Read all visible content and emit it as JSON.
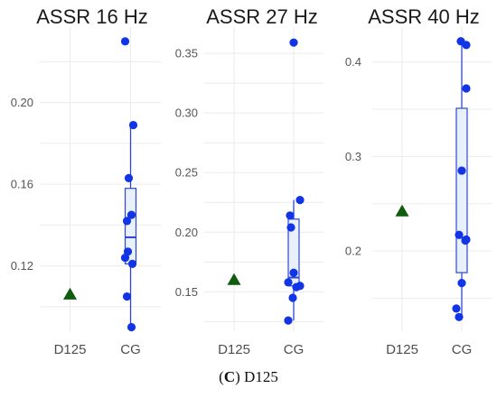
{
  "caption": {
    "letter": "C",
    "text": "D125"
  },
  "colors": {
    "cg_points": "#1034e6",
    "d125_marker": "#0f5c0f",
    "box_fill": "#e8f0fb",
    "box_line": "#2e46d6",
    "grid": "#ebebeb"
  },
  "chart_data": [
    {
      "type": "box",
      "title": "ASSR 16 Hz",
      "categories": [
        "D125",
        "CG"
      ],
      "ylim": [
        0.088,
        0.237
      ],
      "yticks": [
        0.12,
        0.16,
        0.2
      ],
      "ytick_labels": [
        "0.12",
        "0.16",
        "0.20"
      ],
      "grid": true,
      "d125": [
        0.106
      ],
      "cg_points": [
        0.23,
        0.189,
        0.163,
        0.145,
        0.142,
        0.127,
        0.124,
        0.121,
        0.105,
        0.09
      ],
      "cg_box": {
        "whisker_low": 0.09,
        "q1": 0.121,
        "median": 0.134,
        "q3": 0.158,
        "whisker_high": 0.189
      }
    },
    {
      "type": "box",
      "title": "ASSR 27 Hz",
      "categories": [
        "D125",
        "CG"
      ],
      "ylim": [
        0.117,
        0.372
      ],
      "yticks": [
        0.15,
        0.2,
        0.25,
        0.3,
        0.35
      ],
      "ytick_labels": [
        "0.15",
        "0.20",
        "0.25",
        "0.30",
        "0.35"
      ],
      "grid": true,
      "d125": [
        0.16
      ],
      "cg_points": [
        0.359,
        0.227,
        0.214,
        0.204,
        0.166,
        0.158,
        0.155,
        0.154,
        0.145,
        0.126
      ],
      "cg_box": {
        "whisker_low": 0.126,
        "q1": 0.155,
        "median": 0.162,
        "q3": 0.211,
        "whisker_high": 0.227
      }
    },
    {
      "type": "box",
      "title": "ASSR 40 Hz",
      "categories": [
        "D125",
        "CG"
      ],
      "ylim": [
        0.115,
        0.437
      ],
      "yticks": [
        0.2,
        0.3,
        0.4
      ],
      "ytick_labels": [
        "0.2",
        "0.3",
        "0.4"
      ],
      "grid": true,
      "d125": [
        0.242
      ],
      "cg_points": [
        0.422,
        0.418,
        0.372,
        0.285,
        0.217,
        0.212,
        0.211,
        0.166,
        0.139,
        0.13
      ],
      "cg_box": {
        "whisker_low": 0.13,
        "q1": 0.177,
        "median": 0.214,
        "q3": 0.351,
        "whisker_high": 0.422
      }
    }
  ]
}
